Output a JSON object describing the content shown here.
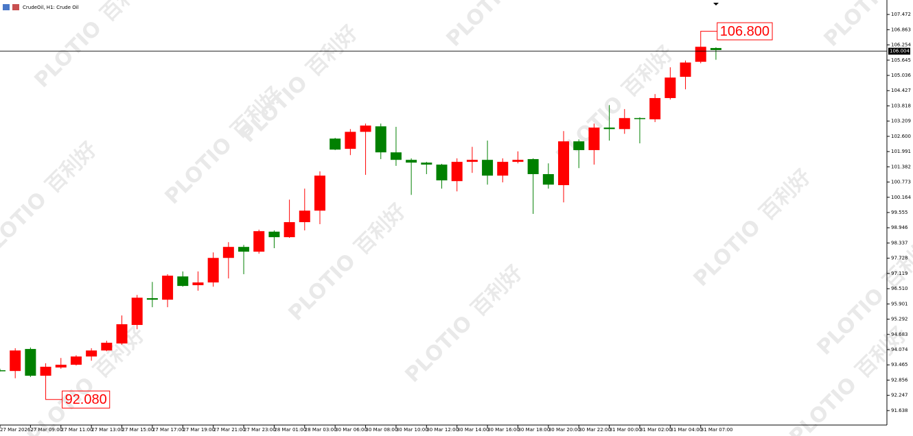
{
  "chart_data": {
    "type": "candlestick",
    "title": "CrudeOil, H1:  Crude Oil",
    "watermark": [
      "PLOTIO",
      "百利好"
    ],
    "categories": [
      "27 Mar 2026",
      null,
      "27 Mar 09:00",
      null,
      "27 Mar 11:00",
      null,
      "27 Mar 13:00",
      null,
      "27 Mar 15:00",
      null,
      "27 Mar 17:00",
      null,
      "27 Mar 19:00",
      null,
      "27 Mar 21:00",
      null,
      "27 Mar 23:00",
      null,
      "28 Mar 01:00",
      null,
      "28 Mar 03:00",
      null,
      "30 Mar 06:00",
      null,
      "30 Mar 08:00",
      null,
      "30 Mar 10:00",
      null,
      "30 Mar 12:00",
      null,
      "30 Mar 14:00",
      null,
      "30 Mar 16:00",
      null,
      "30 Mar 18:00",
      null,
      "30 Mar 20:00",
      null,
      "30 Mar 22:00",
      null,
      "31 Mar 00:00",
      null,
      "31 Mar 02:00",
      null,
      "31 Mar 04:00",
      null,
      "31 Mar 07:00",
      null
    ],
    "open": [
      93.25,
      93.22,
      94.1,
      93.03,
      93.36,
      93.47,
      93.8,
      94.04,
      94.32,
      95.06,
      96.13,
      96.07,
      97.0,
      96.65,
      96.76,
      97.74,
      98.18,
      97.99,
      98.79,
      98.57,
      99.17,
      99.63,
      102.51,
      102.1,
      102.78,
      103.0,
      101.96,
      101.66,
      101.55,
      101.47,
      100.81,
      101.58,
      101.66,
      101.03,
      101.58,
      101.69,
      101.09,
      100.65,
      102.4,
      102.05,
      102.95,
      102.89,
      103.33,
      103.28,
      104.13,
      104.98,
      105.58,
      106.13
    ],
    "high": [
      93.31,
      94.13,
      94.16,
      93.53,
      93.74,
      93.85,
      94.13,
      94.43,
      95.44,
      96.26,
      96.78,
      97.09,
      97.2,
      97.2,
      97.96,
      98.37,
      98.26,
      98.87,
      98.84,
      100.07,
      100.51,
      101.2,
      102.54,
      102.89,
      103.11,
      103.11,
      102.98,
      101.72,
      101.58,
      101.5,
      101.72,
      102.18,
      102.43,
      101.72,
      102.0,
      101.72,
      101.52,
      102.81,
      102.48,
      103.11,
      103.85,
      103.69,
      103.36,
      104.29,
      105.36,
      105.63,
      106.24,
      106.16
    ],
    "low": [
      93.2,
      92.93,
      92.98,
      92.9,
      93.31,
      93.44,
      93.63,
      94.01,
      94.27,
      94.89,
      95.77,
      95.77,
      96.59,
      96.43,
      96.59,
      96.92,
      97.09,
      97.91,
      98.13,
      98.54,
      98.84,
      99.09,
      102.05,
      101.85,
      101.06,
      101.69,
      101.42,
      100.26,
      101.09,
      100.51,
      100.4,
      101.14,
      100.67,
      100.76,
      101.52,
      99.5,
      100.51,
      99.96,
      101.33,
      101.47,
      102.43,
      102.7,
      102.32,
      103.17,
      104.07,
      104.48,
      105.52,
      105.66
    ],
    "close": [
      93.22,
      94.04,
      93.03,
      93.39,
      93.47,
      93.8,
      94.04,
      94.35,
      95.09,
      96.15,
      96.07,
      97.03,
      96.62,
      96.76,
      97.74,
      98.18,
      97.99,
      98.81,
      98.57,
      99.17,
      99.63,
      101.03,
      102.07,
      102.78,
      103.03,
      101.96,
      101.66,
      101.55,
      101.47,
      100.84,
      101.58,
      101.66,
      101.03,
      101.58,
      101.66,
      101.09,
      100.67,
      102.4,
      102.05,
      102.95,
      102.89,
      103.33,
      103.31,
      104.13,
      104.95,
      105.55,
      106.18,
      106.05
    ],
    "up_color": "#ff0000",
    "down_color": "#008000",
    "ylim": [
      91.06,
      108.05
    ],
    "yticks": [
      107.472,
      106.863,
      106.254,
      105.645,
      105.036,
      104.427,
      103.818,
      103.209,
      {
        "value": 102.6,
        "label": "102.600"
      },
      101.991,
      101.382,
      100.773,
      100.164,
      99.555,
      98.946,
      98.337,
      97.728,
      97.119,
      {
        "value": 96.51,
        "label": "96.510"
      },
      95.901,
      95.292,
      94.683,
      94.074,
      93.465,
      92.856,
      92.247,
      91.638
    ],
    "current_price": 106.004,
    "high_label": {
      "value": 106.8,
      "label": "106.800"
    },
    "low_label": {
      "value": 92.08,
      "label": "92.080"
    },
    "grid": false
  }
}
